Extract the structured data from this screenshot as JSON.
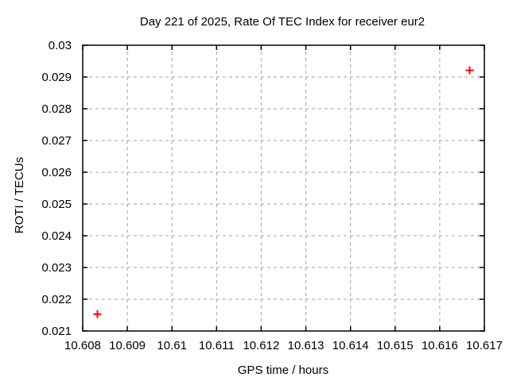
{
  "chart_data": {
    "type": "scatter",
    "title": "Day 221 of 2025, Rate Of TEC Index for receiver eur2",
    "xlabel": "GPS time / hours",
    "ylabel": "ROTI / TECUs",
    "xlim": [
      10.608,
      10.617
    ],
    "ylim": [
      0.021,
      0.03
    ],
    "x_ticks": [
      10.608,
      10.609,
      10.61,
      10.611,
      10.612,
      10.613,
      10.614,
      10.615,
      10.616,
      10.617
    ],
    "x_tick_labels": [
      "10.608",
      "10.609",
      "10.61",
      "10.611",
      "10.612",
      "10.613",
      "10.614",
      "10.615",
      "10.616",
      "10.617"
    ],
    "y_ticks": [
      0.021,
      0.022,
      0.023,
      0.024,
      0.025,
      0.026,
      0.027,
      0.028,
      0.029,
      0.03
    ],
    "y_tick_labels": [
      "0.021",
      "0.022",
      "0.023",
      "0.024",
      "0.025",
      "0.026",
      "0.027",
      "0.028",
      "0.029",
      "0.03"
    ],
    "grid": true,
    "legend_position": "none",
    "series": [
      {
        "name": "ROTI",
        "marker": "plus",
        "color": "#ff0000",
        "points": [
          {
            "x": 10.60833,
            "y": 0.02153
          },
          {
            "x": 10.61667,
            "y": 0.02921
          }
        ]
      }
    ],
    "colors": {
      "grid": "#a0a0a0",
      "axis": "#000000",
      "text": "#000000",
      "background": "#ffffff"
    }
  }
}
